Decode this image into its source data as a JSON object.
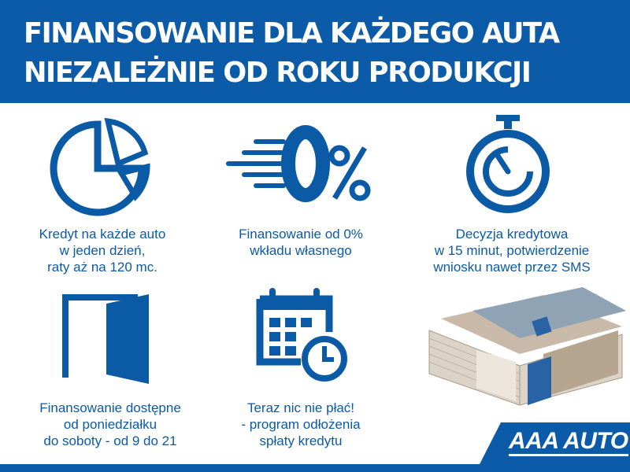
{
  "header": {
    "line1": "FINANSOWANIE DLA KAŻDEGO AUTA",
    "line2": "NIEZALEŻNIE OD ROKU PRODUKCJI"
  },
  "features": [
    {
      "icon": "pie-chart-icon",
      "lines": [
        "Kredyt na każde auto",
        "w jeden dzień,",
        "raty aż na 120 mc."
      ]
    },
    {
      "icon": "zero-percent-icon",
      "lines": [
        "Finansowanie od 0%",
        "wkładu własnego"
      ]
    },
    {
      "icon": "stopwatch-icon",
      "lines": [
        "Decyzja kredytowa",
        "w 15 minut, potwierdzenie",
        "wniosku nawet przez SMS"
      ]
    },
    {
      "icon": "door-icon",
      "lines": [
        "Finansowanie dostępne",
        "od poniedziałku",
        "do soboty - od 9 do 21"
      ]
    },
    {
      "icon": "calendar-clock-icon",
      "lines": [
        "Teraz nic nie płać!",
        "- program odłożenia",
        "spłaty kredytu"
      ]
    }
  ],
  "logo": {
    "text": "AAA AUTO"
  },
  "colors": {
    "brand": "#0b5ba8",
    "background": "#ffffff"
  }
}
